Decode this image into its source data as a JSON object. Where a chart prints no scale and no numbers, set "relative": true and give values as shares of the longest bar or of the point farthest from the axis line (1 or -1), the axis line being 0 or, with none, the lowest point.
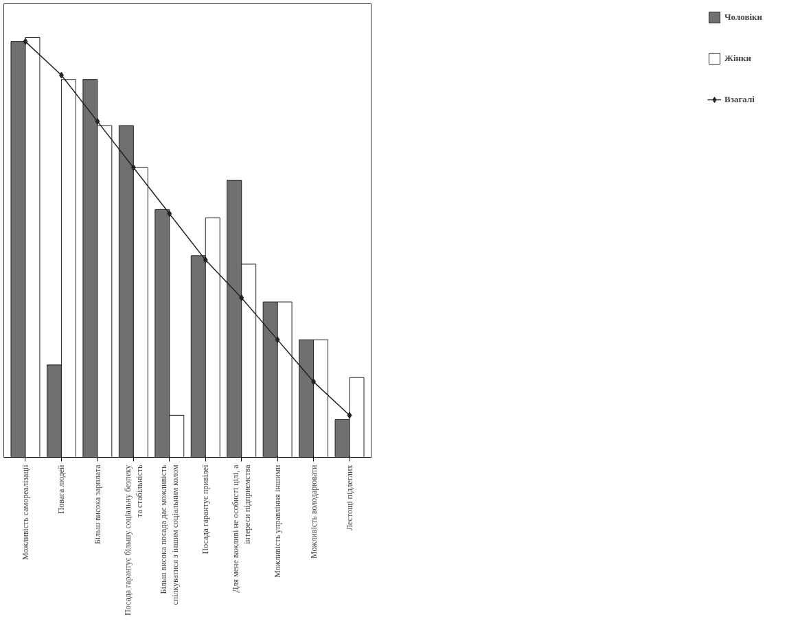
{
  "chart_data": {
    "type": "bar",
    "relative": true,
    "legend": "right",
    "marker": "diamond",
    "grid": false,
    "categories": [
      "Можливість самореалізації",
      "Повага людей",
      "Більш висока зарплата",
      "Посада гарантує більшу соціальну безпеку та стабільність",
      "Більш висока посада дає можливість спілкуватися з іншим соціальним колом",
      "Посада гарантує привілеї",
      "Для мене важливі не особисті цілі, а інтереси підприємства",
      "Можливість управління іншими",
      "Можливість володарювати",
      "Лестощі підлеглих"
    ],
    "series": [
      {
        "name": "Чоловіки",
        "color": "#707070",
        "values": [
          0.99,
          0.22,
          0.9,
          0.79,
          0.59,
          0.48,
          0.66,
          0.37,
          0.28,
          0.09
        ]
      },
      {
        "name": "Жінки",
        "color": "#ffffff",
        "values": [
          1.0,
          0.9,
          0.79,
          0.69,
          0.1,
          0.57,
          0.46,
          0.37,
          0.28,
          0.19
        ]
      },
      {
        "name": "Взагалі",
        "type": "line",
        "color": "#222222",
        "values": [
          0.99,
          0.91,
          0.8,
          0.69,
          0.58,
          0.47,
          0.38,
          0.28,
          0.18,
          0.1
        ]
      }
    ]
  }
}
